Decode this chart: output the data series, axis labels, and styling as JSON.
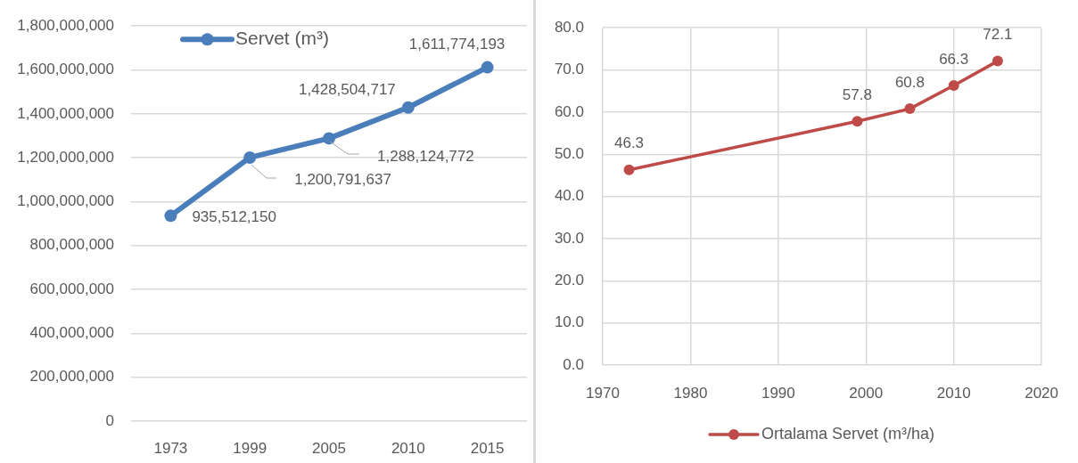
{
  "chart_data": [
    {
      "type": "line",
      "categories": [
        "1973",
        "1999",
        "2005",
        "2010",
        "2015"
      ],
      "series": [
        {
          "name": "Servet (m³)",
          "color": "#4a7ebb",
          "values": [
            935512150,
            1200791637,
            1288124772,
            1428504717,
            1611774193
          ],
          "value_labels": [
            "935,512,150",
            "1,200,791,637",
            "1,288,124,772",
            "1,428,504,717",
            "1,611,774,193"
          ]
        }
      ],
      "ylim": [
        0,
        1800000000
      ],
      "yticks": [
        0,
        {
          "value": 200000000,
          "label": "200,000,000"
        },
        {
          "value": 400000000,
          "label": "400,000,000"
        },
        {
          "value": 600000000,
          "label": "600,000,000"
        },
        {
          "value": 800000000,
          "label": "800,000,000"
        },
        {
          "value": 1000000000,
          "label": "1,000,000,000"
        },
        {
          "value": 1200000000,
          "label": "1,200,000,000"
        },
        {
          "value": 1400000000,
          "label": "1,400,000,000"
        },
        {
          "value": 1600000000,
          "label": "1,600,000,000"
        },
        {
          "value": 1800000000,
          "label": "1,800,000,000"
        }
      ],
      "grid": "y",
      "legend": "top left",
      "marker": "circle"
    },
    {
      "type": "line",
      "x": [
        1973,
        1999,
        2005,
        2010,
        2015
      ],
      "series": [
        {
          "name": "Ortalama Servet (m³/ha)",
          "color": "#be4b48",
          "values": [
            46.3,
            57.8,
            60.8,
            66.3,
            72.1
          ]
        }
      ],
      "xlim": [
        1970,
        2020
      ],
      "xticks": [
        1970,
        1980,
        1990,
        2000,
        2010,
        2020
      ],
      "ylim": [
        0,
        80
      ],
      "yticks": [
        {
          "value": 0,
          "label": "0.0"
        },
        {
          "value": 10,
          "label": "10.0"
        },
        {
          "value": 20,
          "label": "20.0"
        },
        {
          "value": 30,
          "label": "30.0"
        },
        {
          "value": 40,
          "label": "40.0"
        },
        {
          "value": 50,
          "label": "50.0"
        },
        {
          "value": 60,
          "label": "60.0"
        },
        {
          "value": 70,
          "label": "70.0"
        },
        {
          "value": 80,
          "label": "80.0"
        }
      ],
      "grid": true,
      "legend": "bottom",
      "marker": "circle",
      "data_labels": true
    }
  ]
}
